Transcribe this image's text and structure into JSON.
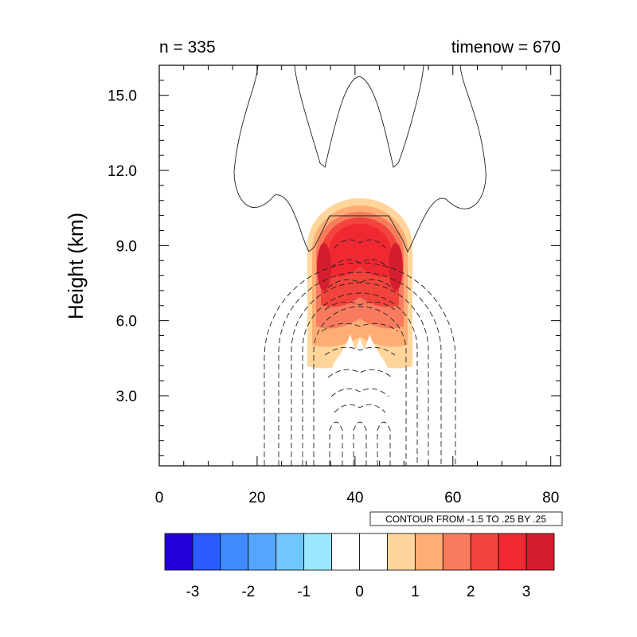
{
  "chart_data": {
    "type": "contour",
    "title_left": "n = 335",
    "title_right": "timenow = 670",
    "xlabel": "",
    "ylabel": "Height (km)",
    "xlim": [
      0,
      82
    ],
    "ylim": [
      0.2,
      16.2
    ],
    "x_ticks": [
      "0",
      "20",
      "40",
      "60",
      "80"
    ],
    "x_tick_values": [
      0,
      20,
      40,
      60,
      80
    ],
    "y_ticks": [
      "3.0",
      "6.0",
      "9.0",
      "12.0",
      "15.0"
    ],
    "y_tick_values": [
      3,
      6,
      9,
      12,
      15
    ],
    "contour_info": "CONTOUR FROM -1.5 TO .25 BY .25",
    "colorbar": {
      "colors": [
        "#2400d8",
        "#2a5bff",
        "#3f8bff",
        "#55a6ff",
        "#70c7ff",
        "#9be8ff",
        "#ffffff",
        "#ffffff",
        "#ffd59b",
        "#ffad75",
        "#f87b5e",
        "#f2433c",
        "#f02832",
        "#d51d2d"
      ],
      "labels": [
        "-3",
        "-2",
        "-1",
        "0",
        "1",
        "2",
        "3"
      ],
      "label_values": [
        -3,
        -2,
        -1,
        0,
        1,
        2,
        3
      ],
      "boundaries": [
        -3.5,
        -3.0,
        -2.5,
        -2.0,
        -1.5,
        -1.0,
        -0.5,
        0.0,
        0.5,
        1.0,
        1.5,
        2.0,
        2.5,
        3.0,
        3.5
      ]
    },
    "field": {
      "center_x": 41,
      "peak_value": 3.0,
      "core_height_km": 8.0
    }
  }
}
